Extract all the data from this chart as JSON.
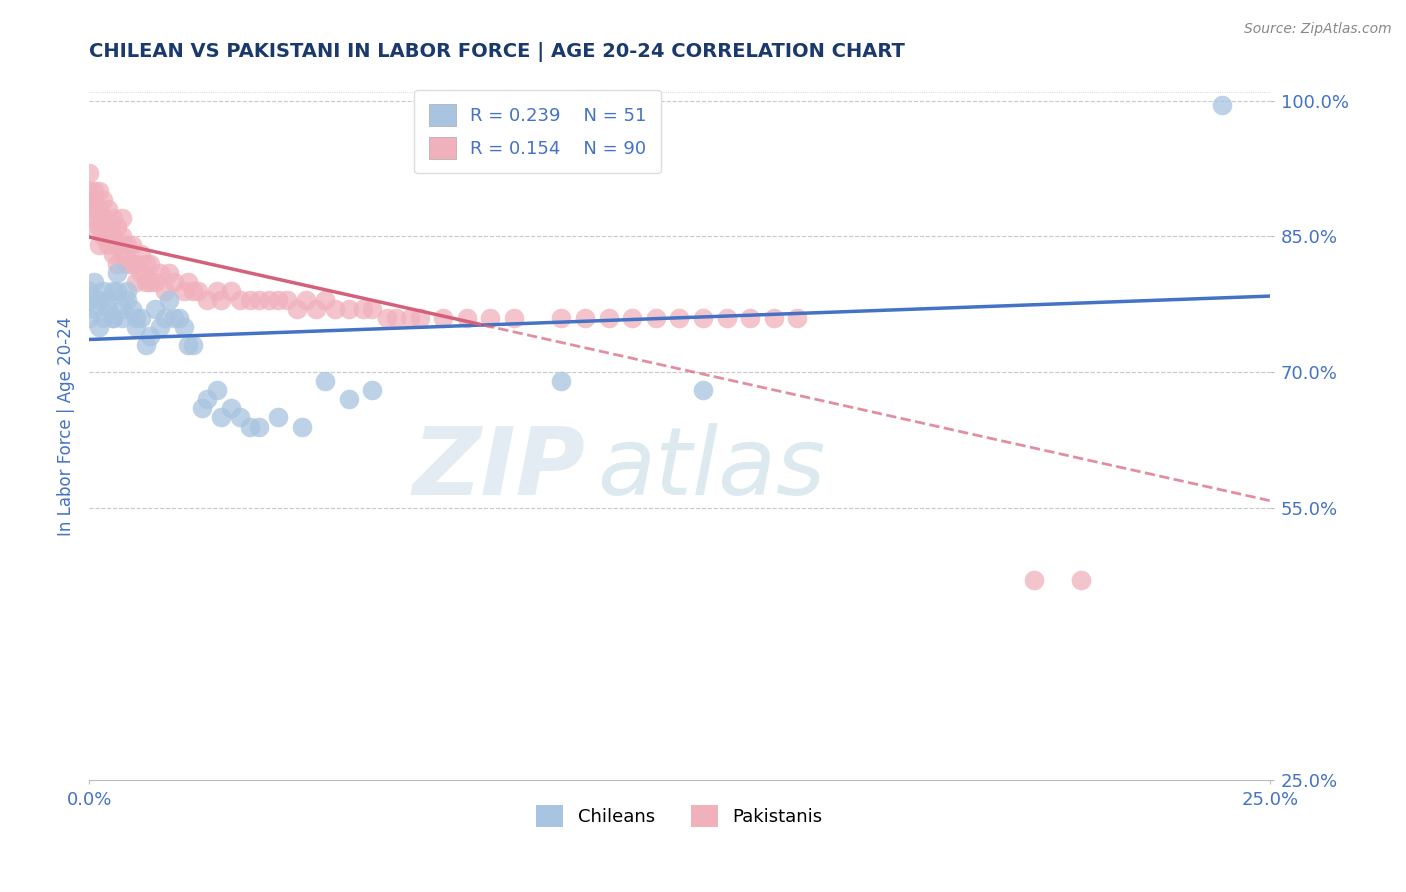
{
  "title": "CHILEAN VS PAKISTANI IN LABOR FORCE | AGE 20-24 CORRELATION CHART",
  "source": "Source: ZipAtlas.com",
  "ylabel_text": "In Labor Force | Age 20-24",
  "xmin": 0.0,
  "xmax": 0.25,
  "ymin": 0.25,
  "ymax": 1.03,
  "yticks": [
    1.0,
    0.85,
    0.7,
    0.55,
    0.25
  ],
  "ytick_labels": [
    "100.0%",
    "85.0%",
    "70.0%",
    "55.0%",
    "25.0%"
  ],
  "xticks": [
    0.0,
    0.25
  ],
  "xtick_labels": [
    "0.0%",
    "25.0%"
  ],
  "legend_items": [
    "Chileans",
    "Pakistanis"
  ],
  "r_chilean": 0.239,
  "n_chilean": 51,
  "r_pakistani": 0.154,
  "n_pakistani": 90,
  "blue_color": "#a8c4e0",
  "pink_color": "#f0b0bc",
  "blue_line_color": "#4472c4",
  "pink_line_color": "#d4607a",
  "title_color": "#1a3a6e",
  "axis_label_color": "#4472c4",
  "tick_color": "#4472c4",
  "grid_color": "#c8c8c8",
  "watermark_zip": "ZIP",
  "watermark_atlas": "atlas",
  "chilean_x": [
    0.0,
    0.0,
    0.0,
    0.001,
    0.001,
    0.002,
    0.002,
    0.003,
    0.003,
    0.004,
    0.004,
    0.005,
    0.005,
    0.005,
    0.006,
    0.006,
    0.007,
    0.007,
    0.008,
    0.008,
    0.009,
    0.01,
    0.01,
    0.011,
    0.012,
    0.013,
    0.014,
    0.015,
    0.016,
    0.017,
    0.018,
    0.019,
    0.02,
    0.021,
    0.022,
    0.024,
    0.025,
    0.027,
    0.028,
    0.03,
    0.032,
    0.034,
    0.036,
    0.04,
    0.045,
    0.05,
    0.055,
    0.06,
    0.1,
    0.13,
    0.24
  ],
  "chilean_y": [
    0.78,
    0.76,
    0.79,
    0.77,
    0.8,
    0.75,
    0.78,
    0.79,
    0.76,
    0.77,
    0.78,
    0.76,
    0.79,
    0.76,
    0.79,
    0.81,
    0.77,
    0.76,
    0.79,
    0.78,
    0.77,
    0.75,
    0.76,
    0.76,
    0.73,
    0.74,
    0.77,
    0.75,
    0.76,
    0.78,
    0.76,
    0.76,
    0.75,
    0.73,
    0.73,
    0.66,
    0.67,
    0.68,
    0.65,
    0.66,
    0.65,
    0.64,
    0.64,
    0.65,
    0.64,
    0.69,
    0.67,
    0.68,
    0.69,
    0.68,
    0.995
  ],
  "pakistani_x": [
    0.0,
    0.0,
    0.0,
    0.0,
    0.001,
    0.001,
    0.001,
    0.001,
    0.002,
    0.002,
    0.002,
    0.002,
    0.003,
    0.003,
    0.003,
    0.003,
    0.004,
    0.004,
    0.004,
    0.004,
    0.005,
    0.005,
    0.005,
    0.005,
    0.006,
    0.006,
    0.006,
    0.007,
    0.007,
    0.007,
    0.008,
    0.008,
    0.009,
    0.009,
    0.01,
    0.01,
    0.011,
    0.011,
    0.012,
    0.012,
    0.013,
    0.013,
    0.014,
    0.015,
    0.016,
    0.017,
    0.018,
    0.02,
    0.021,
    0.022,
    0.023,
    0.025,
    0.027,
    0.028,
    0.03,
    0.032,
    0.034,
    0.036,
    0.038,
    0.04,
    0.042,
    0.044,
    0.046,
    0.048,
    0.05,
    0.052,
    0.055,
    0.058,
    0.06,
    0.063,
    0.065,
    0.068,
    0.07,
    0.075,
    0.08,
    0.085,
    0.09,
    0.1,
    0.105,
    0.11,
    0.115,
    0.12,
    0.125,
    0.13,
    0.135,
    0.14,
    0.145,
    0.15,
    0.2,
    0.21
  ],
  "pakistani_y": [
    0.87,
    0.9,
    0.88,
    0.92,
    0.86,
    0.89,
    0.88,
    0.9,
    0.84,
    0.86,
    0.88,
    0.9,
    0.85,
    0.87,
    0.89,
    0.86,
    0.84,
    0.86,
    0.88,
    0.86,
    0.83,
    0.85,
    0.87,
    0.85,
    0.82,
    0.84,
    0.86,
    0.83,
    0.85,
    0.87,
    0.82,
    0.84,
    0.82,
    0.84,
    0.8,
    0.82,
    0.81,
    0.83,
    0.8,
    0.82,
    0.8,
    0.82,
    0.8,
    0.81,
    0.79,
    0.81,
    0.8,
    0.79,
    0.8,
    0.79,
    0.79,
    0.78,
    0.79,
    0.78,
    0.79,
    0.78,
    0.78,
    0.78,
    0.78,
    0.78,
    0.78,
    0.77,
    0.78,
    0.77,
    0.78,
    0.77,
    0.77,
    0.77,
    0.77,
    0.76,
    0.76,
    0.76,
    0.76,
    0.76,
    0.76,
    0.76,
    0.76,
    0.76,
    0.76,
    0.76,
    0.76,
    0.76,
    0.76,
    0.76,
    0.76,
    0.76,
    0.76,
    0.76,
    0.47,
    0.47
  ]
}
